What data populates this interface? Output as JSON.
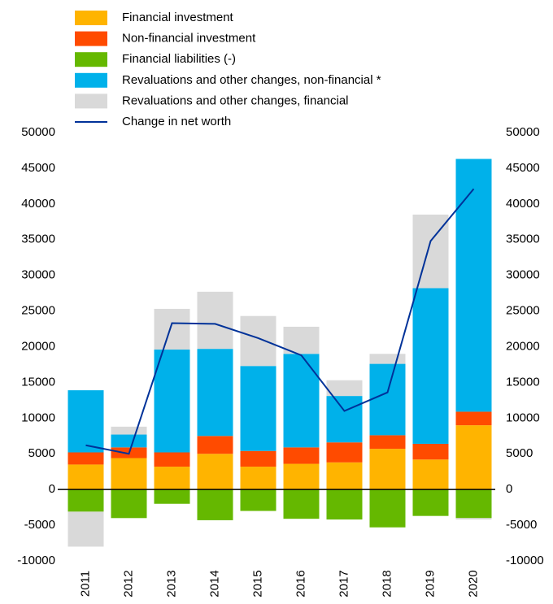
{
  "chart_data": {
    "type": "stacked-bar-line",
    "categories": [
      "2011",
      "2012",
      "2013",
      "2014",
      "2015",
      "2016",
      "2017",
      "2018",
      "2019",
      "2020"
    ],
    "series": [
      {
        "name": "Financial investment",
        "color": "#ffb400",
        "type": "bar",
        "values": [
          3500,
          4400,
          3200,
          5000,
          3200,
          3600,
          3800,
          5700,
          4200,
          9000
        ]
      },
      {
        "name": "Non-financial investment",
        "color": "#ff4b00",
        "type": "bar",
        "values": [
          1700,
          1500,
          2000,
          2500,
          2200,
          2300,
          2800,
          1900,
          2200,
          1900
        ]
      },
      {
        "name": "Financial liabilities (-)",
        "color": "#65b800",
        "type": "bar",
        "values": [
          -3100,
          -4000,
          -2000,
          -4300,
          -3000,
          -4100,
          -4200,
          -5300,
          -3700,
          -4000
        ]
      },
      {
        "name": "Revaluations and other changes, non-financial *",
        "color": "#00b1ea",
        "type": "bar",
        "values": [
          8700,
          1800,
          14400,
          12200,
          11900,
          13100,
          6500,
          10000,
          21800,
          35400
        ]
      },
      {
        "name": "Revaluations and other changes, financial",
        "color": "#d9d9d9",
        "type": "bar",
        "values": [
          -4900,
          1100,
          5700,
          8000,
          7000,
          3800,
          2200,
          1400,
          10300,
          -200
        ]
      },
      {
        "name": "Change in net worth",
        "color": "#003299",
        "type": "line",
        "values": [
          6200,
          5000,
          23300,
          23200,
          21200,
          18800,
          11000,
          13600,
          34800,
          42100
        ]
      }
    ],
    "ylim": [
      -10000,
      50000
    ],
    "yticks": [
      -10000,
      -5000,
      0,
      5000,
      10000,
      15000,
      20000,
      25000,
      30000,
      35000,
      40000,
      45000,
      50000
    ],
    "y2lim": [
      -10000,
      50000
    ],
    "y2ticks": [
      -10000,
      -5000,
      0,
      5000,
      10000,
      15000,
      20000,
      25000,
      30000,
      35000,
      40000,
      45000,
      50000
    ]
  }
}
